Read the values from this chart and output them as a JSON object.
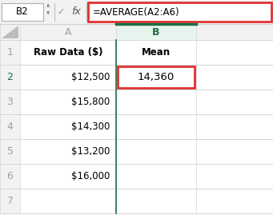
{
  "bg_color": "#ffffff",
  "formula_bar_bg": "#f2f2f2",
  "formula_bar_border": "#e03030",
  "formula_bar_text": "=AVERAGE(A2:A6)",
  "cell_ref": "B2",
  "grid_line_color": "#d4d4d4",
  "col_A_header": "Raw Data ($)",
  "col_B_header": "Mean",
  "col_A_data": [
    "$12,500",
    "$15,800",
    "$14,300",
    "$13,200",
    "$16,000",
    ""
  ],
  "col_B_data": [
    "14,360",
    "",
    "",
    "",
    "",
    ""
  ],
  "cell_highlight_color": "#e03030",
  "col_b_header_color": "#1e6e42",
  "active_col_bg": "#e8f4ee",
  "row_bg": "#f2f2f2",
  "triangle_color": "#bdbdbd",
  "col_A_letter_color": "#a0a0a0",
  "row_num_color": "#a0a0a0",
  "row_num_selected_color": "#1e6e42",
  "header_text_color": "#000000",
  "data_text_color": "#000000",
  "formula_text_color": "#000000",
  "cellref_text_color": "#000000"
}
